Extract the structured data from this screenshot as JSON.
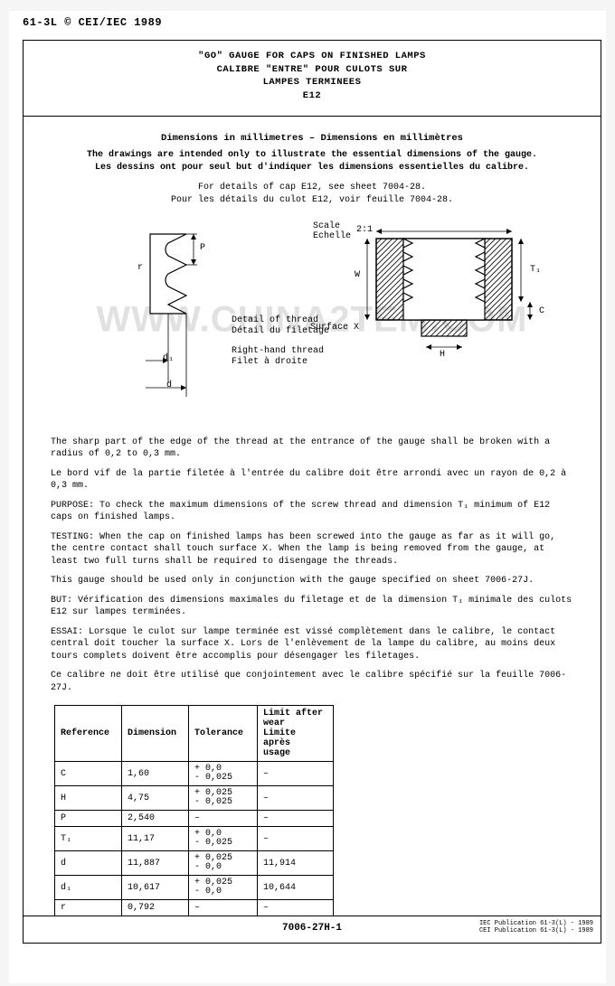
{
  "header": {
    "top_code": "61-3L © CEI/IEC 1989"
  },
  "title": {
    "line1": "\"GO\" GAUGE FOR CAPS ON FINISHED LAMPS",
    "line2": "CALIBRE \"ENTRE\" POUR CULOTS SUR",
    "line3": "LAMPES TERMINEES",
    "line4": "E12"
  },
  "section": {
    "dims_header": "Dimensions in millimetres – Dimensions en millimètres",
    "intro_en": "The drawings are intended only to illustrate the essential dimensions of the gauge.",
    "intro_fr": "Les dessins ont pour seul but d'indiquer les dimensions essentielles du calibre.",
    "detail_en": "For details of cap E12, see sheet 7004-28.",
    "detail_fr": "Pour les détails du culot E12, voir feuille 7004-28."
  },
  "diagram": {
    "scale_en": "Scale",
    "scale_fr": "Echelle",
    "scale_val": "2:1",
    "surface_x": "Surface X",
    "detail_thread_en": "Detail of thread",
    "detail_thread_fr": "Détail du filetage",
    "rh_thread_en": "Right-hand thread",
    "rh_thread_fr": "Filet à droite",
    "label_P": "P",
    "label_r": "r",
    "label_d1": "d₁",
    "label_d": "d",
    "label_H": "H",
    "label_C": "C",
    "label_T1": "T₁",
    "label_W": "W"
  },
  "watermark": "WWW.CHINA2TEM.COM",
  "paragraphs": {
    "p1": "The sharp part of the edge of the thread at the entrance of the gauge shall be broken with a radius of 0,2 to 0,3 mm.",
    "p2": "Le bord vif de la partie filetée à l'entrée du calibre doit être arrondi avec un rayon de 0,2 à 0,3 mm.",
    "p3": "PURPOSE: To check the maximum dimensions of the screw thread and dimension T₁ minimum of E12 caps on finished lamps.",
    "p4": "TESTING: When the cap on finished lamps has been screwed into the gauge as far as it will go, the centre contact shall touch surface X. When the lamp is being removed from the gauge, at least two full turns shall be required to disengage the threads.",
    "p5": "This gauge should be used only in conjunction with the gauge specified on sheet 7006-27J.",
    "p6": "BUT: Vérification des dimensions maximales du filetage et de la dimension T₁ minimale des culots E12 sur lampes terminées.",
    "p7": "ESSAI: Lorsque le culot sur lampe terminée est vissé complètement dans le calibre, le contact central doit toucher la surface X. Lors de l'enlèvement de la lampe du calibre, au moins deux tours complets doivent être accomplis pour désengager les filetages.",
    "p8": "Ce calibre ne doit être utilisé que conjointement avec le calibre spécifié sur la feuille 7006-27J."
  },
  "table": {
    "headers": {
      "ref": "Reference",
      "dim": "Dimension",
      "tol": "Tolerance",
      "wear": "Limit after\nwear\nLimite après\nusage"
    },
    "col_widths": {
      "ref": 74,
      "dim": 74,
      "tol": 76,
      "wear": 84
    },
    "rows": [
      {
        "ref": "C",
        "dim": "1,60",
        "tol": "+ 0,0\n- 0,025",
        "wear": "–"
      },
      {
        "ref": "H",
        "dim": "4,75",
        "tol": "+ 0,025\n- 0,025",
        "wear": "–"
      },
      {
        "ref": "P",
        "dim": "2,540",
        "tol": "–",
        "wear": "–"
      },
      {
        "ref": "T₁",
        "dim": "11,17",
        "tol": "+ 0,0\n- 0,025",
        "wear": "–"
      },
      {
        "ref": "d",
        "dim": "11,887",
        "tol": "+ 0,025\n- 0,0",
        "wear": "11,914"
      },
      {
        "ref": "d₁",
        "dim": "10,617",
        "tol": "+ 0,025\n- 0,0",
        "wear": "10,644"
      },
      {
        "ref": "r",
        "dim": "0,792",
        "tol": "–",
        "wear": "–"
      }
    ]
  },
  "footer": {
    "center": "7006-27H-1",
    "right1": "IEC Publication 61-3(L) - 1989",
    "right2": "CEI Publication 61-3(L) - 1989"
  },
  "colors": {
    "page_bg": "#ffffff",
    "outer_bg": "#f5f5f5",
    "line": "#000000",
    "text": "#000000",
    "hatch": "#2a2a2a"
  }
}
